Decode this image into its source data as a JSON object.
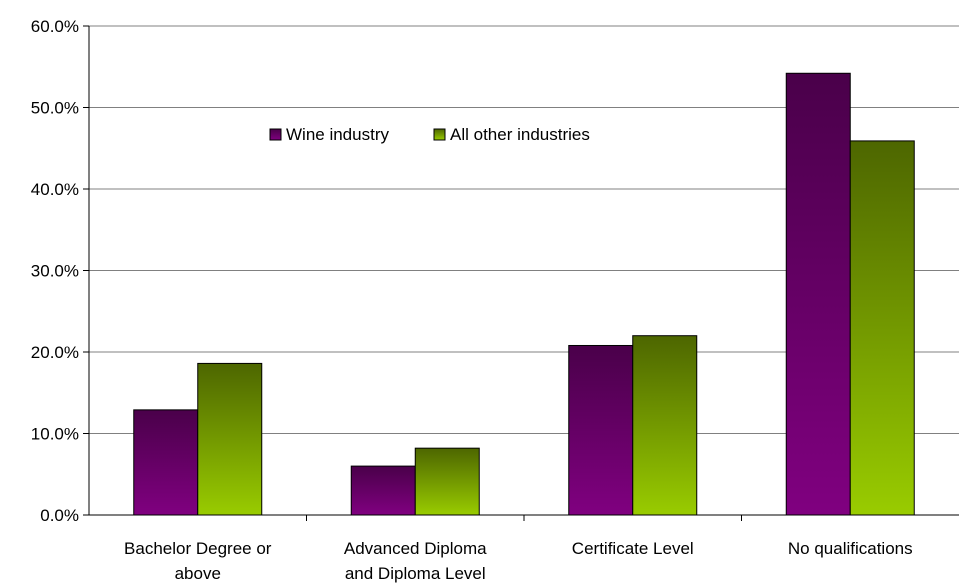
{
  "chart_data": {
    "type": "bar",
    "categories": [
      [
        "Bachelor Degree or",
        "above"
      ],
      [
        "Advanced Diploma",
        "and Diploma Level"
      ],
      [
        "Certificate Level"
      ],
      [
        "No qualifications"
      ]
    ],
    "series": [
      {
        "name": "Wine industry",
        "values": [
          12.9,
          6.0,
          20.8,
          54.2
        ],
        "color": "#800080"
      },
      {
        "name": "All other industries",
        "values": [
          18.6,
          8.2,
          22.0,
          45.9
        ],
        "color": "#99CC00"
      }
    ],
    "y_ticks": [
      "0.0%",
      "10.0%",
      "20.0%",
      "30.0%",
      "40.0%",
      "50.0%",
      "60.0%"
    ],
    "ylim": [
      0,
      60
    ],
    "y_format": "percent_1dp",
    "grid": true,
    "legend_position": "top-center",
    "title": "",
    "xlabel": "",
    "ylabel": ""
  }
}
